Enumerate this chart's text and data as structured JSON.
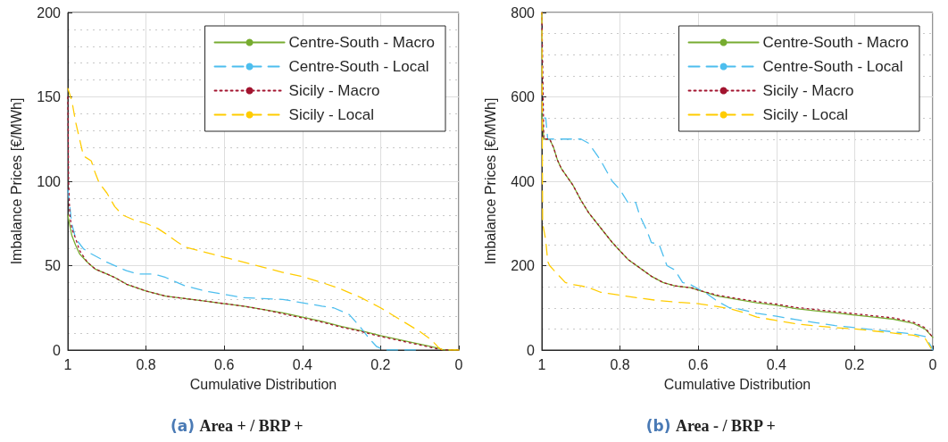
{
  "chart_data": [
    {
      "type": "line",
      "title": "(a) Area + / BRP +",
      "xlabel": "Cumulative Distribution",
      "ylabel": "Imbalance Prices [€/MWh]",
      "xlim": [
        1,
        0
      ],
      "xticks": [
        1,
        0.8,
        0.6,
        0.4,
        0.2,
        0
      ],
      "ylim": [
        0,
        200
      ],
      "yticks": [
        0,
        50,
        100,
        150,
        200
      ],
      "grid": true,
      "legend": "top right",
      "series": [
        {
          "name": "Centre-South - Macro",
          "color": "#77ac30",
          "line_style": "solid",
          "x": [
            1,
            0.99,
            0.98,
            0.97,
            0.95,
            0.93,
            0.9,
            0.88,
            0.85,
            0.8,
            0.75,
            0.7,
            0.65,
            0.6,
            0.55,
            0.5,
            0.45,
            0.4,
            0.35,
            0.3,
            0.25,
            0.2,
            0.15,
            0.1,
            0.05,
            0.04,
            0
          ],
          "values": [
            80,
            68,
            62,
            57,
            52,
            48,
            45,
            43,
            39,
            35,
            32,
            30.5,
            29,
            27.5,
            26,
            24,
            22,
            19.5,
            17,
            14,
            11.5,
            8.5,
            6,
            3.5,
            1,
            0,
            0
          ]
        },
        {
          "name": "Centre-South - Local",
          "color": "#4dbeee",
          "line_style": "dashed",
          "x": [
            1,
            0.99,
            0.98,
            0.96,
            0.94,
            0.9,
            0.87,
            0.85,
            0.82,
            0.78,
            0.75,
            0.7,
            0.65,
            0.6,
            0.55,
            0.5,
            0.45,
            0.4,
            0.35,
            0.32,
            0.28,
            0.25,
            0.23,
            0.21,
            0.19,
            0.1
          ],
          "values": [
            95,
            75,
            66,
            60,
            57,
            52,
            49,
            47,
            45,
            45,
            43,
            38,
            35,
            33,
            31,
            30.5,
            30,
            28,
            26,
            25,
            21,
            13,
            7,
            2,
            0,
            0
          ]
        },
        {
          "name": "Sicily - Macro",
          "color": "#a2142f",
          "line_style": "dotted",
          "x": [
            1,
            0.998,
            0.995,
            0.99,
            0.98,
            0.97,
            0.95,
            0.93,
            0.9,
            0.88,
            0.85,
            0.8,
            0.75,
            0.7,
            0.65,
            0.6,
            0.55,
            0.5,
            0.45,
            0.4,
            0.35,
            0.3,
            0.25,
            0.2,
            0.15,
            0.1,
            0.05,
            0.04,
            0
          ],
          "values": [
            150,
            100,
            80,
            72,
            66,
            59,
            52,
            48,
            45,
            43,
            39,
            35,
            32,
            30.5,
            29,
            27.5,
            26,
            24,
            21.5,
            19,
            16.5,
            13.5,
            11,
            8,
            5.5,
            3,
            0.5,
            0,
            0
          ]
        },
        {
          "name": "Sicily - Local",
          "color": "#ffcc00",
          "line_style": "dashed",
          "x": [
            1,
            0.99,
            0.98,
            0.97,
            0.96,
            0.94,
            0.93,
            0.92,
            0.9,
            0.88,
            0.86,
            0.83,
            0.8,
            0.77,
            0.75,
            0.72,
            0.7,
            0.65,
            0.6,
            0.55,
            0.5,
            0.45,
            0.4,
            0.35,
            0.3,
            0.25,
            0.2,
            0.15,
            0.1,
            0.07,
            0.05,
            0.04,
            0
          ],
          "values": [
            155,
            148,
            135,
            125,
            115,
            112,
            105,
            99,
            93,
            85,
            80,
            77,
            75,
            72,
            69,
            64,
            61,
            58,
            55,
            52,
            49,
            46,
            43.5,
            40,
            36,
            31,
            25,
            18,
            11,
            6,
            1,
            0,
            0
          ]
        }
      ]
    },
    {
      "type": "line",
      "title": "(b) Area - / BRP +",
      "xlabel": "Cumulative Distribution",
      "ylabel": "Imbalance Prices [€/MWh]",
      "xlim": [
        1,
        0
      ],
      "xticks": [
        1,
        0.8,
        0.6,
        0.4,
        0.2,
        0
      ],
      "ylim": [
        0,
        800
      ],
      "yticks": [
        0,
        200,
        400,
        600,
        800
      ],
      "grid": true,
      "legend": "top right",
      "series": [
        {
          "name": "Centre-South - Macro",
          "color": "#77ac30",
          "line_style": "solid",
          "x": [
            1,
            0.995,
            0.98,
            0.97,
            0.96,
            0.95,
            0.92,
            0.9,
            0.88,
            0.85,
            0.82,
            0.8,
            0.78,
            0.75,
            0.72,
            0.69,
            0.66,
            0.62,
            0.6,
            0.55,
            0.5,
            0.45,
            0.4,
            0.35,
            0.3,
            0.25,
            0.2,
            0.15,
            0.1,
            0.05,
            0.02,
            0
          ],
          "values": [
            560,
            500,
            500,
            480,
            450,
            430,
            390,
            355,
            325,
            290,
            255,
            235,
            215,
            195,
            175,
            160,
            152,
            148,
            142,
            128,
            120,
            112,
            106,
            98,
            93,
            88,
            83,
            78,
            73,
            63,
            50,
            30
          ]
        },
        {
          "name": "Centre-South - Local",
          "color": "#4dbeee",
          "line_style": "dashed",
          "x": [
            1,
            0.998,
            0.99,
            0.985,
            0.96,
            0.9,
            0.88,
            0.85,
            0.82,
            0.8,
            0.78,
            0.76,
            0.75,
            0.73,
            0.72,
            0.7,
            0.68,
            0.66,
            0.64,
            0.62,
            0.6,
            0.58,
            0.55,
            0.52,
            0.5,
            0.45,
            0.4,
            0.35,
            0.3,
            0.25,
            0.2,
            0.15,
            0.1,
            0.05,
            0.02,
            0.005,
            0
          ],
          "values": [
            800,
            550,
            550,
            500,
            500,
            500,
            490,
            450,
            400,
            380,
            350,
            350,
            320,
            280,
            255,
            250,
            200,
            190,
            160,
            155,
            145,
            135,
            115,
            100,
            98,
            87,
            80,
            72,
            65,
            58,
            53,
            48,
            43,
            38,
            32,
            10,
            0
          ]
        },
        {
          "name": "Sicily - Macro",
          "color": "#a2142f",
          "line_style": "dotted",
          "x": [
            1,
            0.995,
            0.98,
            0.97,
            0.96,
            0.95,
            0.92,
            0.9,
            0.88,
            0.85,
            0.82,
            0.8,
            0.78,
            0.75,
            0.72,
            0.69,
            0.66,
            0.62,
            0.6,
            0.55,
            0.5,
            0.45,
            0.4,
            0.35,
            0.3,
            0.25,
            0.2,
            0.15,
            0.1,
            0.05,
            0.02,
            0
          ],
          "values": [
            800,
            500,
            500,
            480,
            450,
            430,
            390,
            355,
            325,
            290,
            255,
            235,
            215,
            195,
            175,
            160,
            152,
            148,
            142,
            130,
            122,
            115,
            109,
            101,
            96,
            91,
            86,
            81,
            76,
            66,
            53,
            30
          ]
        },
        {
          "name": "Sicily - Local",
          "color": "#ffcc00",
          "line_style": "dashed",
          "x": [
            1,
            0.998,
            0.99,
            0.985,
            0.98,
            0.96,
            0.94,
            0.92,
            0.9,
            0.88,
            0.85,
            0.8,
            0.75,
            0.7,
            0.65,
            0.6,
            0.55,
            0.52,
            0.48,
            0.45,
            0.4,
            0.35,
            0.3,
            0.25,
            0.2,
            0.15,
            0.1,
            0.05,
            0.02,
            0.005,
            0
          ],
          "values": [
            800,
            300,
            260,
            210,
            200,
            180,
            160,
            155,
            152,
            148,
            137,
            130,
            123,
            117,
            113,
            110,
            103,
            98,
            88,
            78,
            70,
            62,
            57,
            53,
            50,
            45,
            40,
            35,
            28,
            5,
            0
          ]
        }
      ]
    }
  ]
}
